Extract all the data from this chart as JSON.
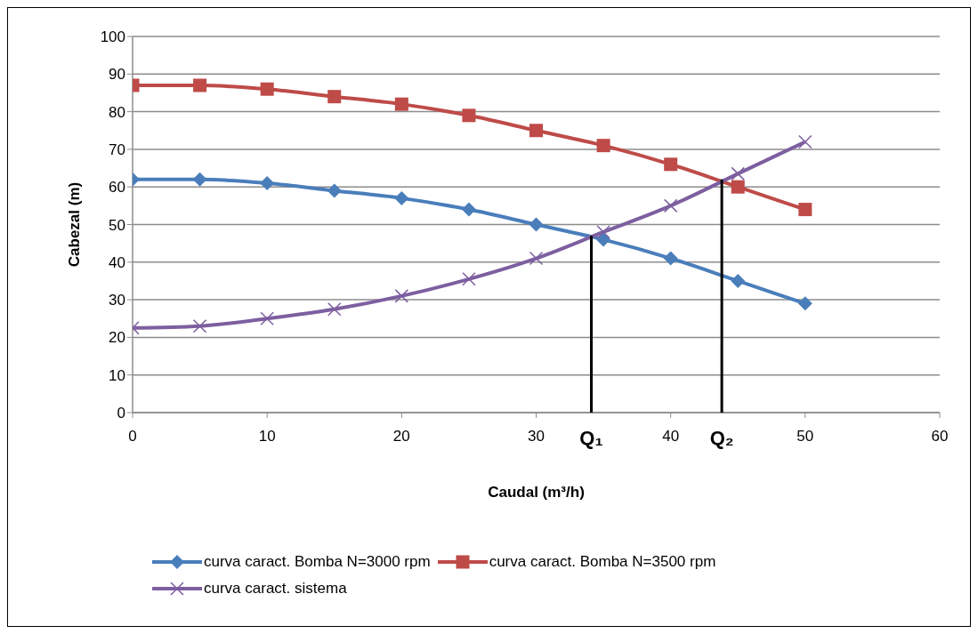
{
  "chart_data": {
    "type": "line",
    "xlabel": "Caudal (m³/h)",
    "ylabel": "Cabezal (m)",
    "x": [
      0,
      5,
      10,
      15,
      20,
      25,
      30,
      35,
      40,
      45,
      50
    ],
    "series": [
      {
        "name": "curva caract. Bomba  N=3000 rpm",
        "color": "#4a7ebb",
        "marker": "diamond",
        "values": [
          62,
          62,
          61,
          59,
          57,
          54,
          50,
          46,
          41,
          35,
          29
        ]
      },
      {
        "name": "curva caract. Bomba  N=3500 rpm",
        "color": "#be4b48",
        "marker": "square",
        "values": [
          87,
          87,
          86,
          84,
          82,
          79,
          75,
          71,
          66,
          60,
          54
        ]
      },
      {
        "name": "curva caract. sistema",
        "color": "#7d5fa0",
        "marker": "cross",
        "values": [
          22.5,
          23,
          25,
          27.5,
          31,
          35.5,
          41,
          48,
          55,
          63.5,
          72
        ]
      }
    ],
    "annotations": [
      {
        "text": "Q₁",
        "x": 34.1,
        "y": 47
      },
      {
        "text": "Q₂",
        "x": 43.8,
        "y": 62
      }
    ],
    "xlim": [
      0,
      60
    ],
    "xticks": [
      0,
      10,
      20,
      30,
      40,
      50,
      60
    ],
    "ylim": [
      0,
      100
    ],
    "yticks": [
      0,
      10,
      20,
      30,
      40,
      50,
      60,
      70,
      80,
      90,
      100
    ],
    "grid": "y",
    "legend": "bottom",
    "line_style": "solid"
  }
}
